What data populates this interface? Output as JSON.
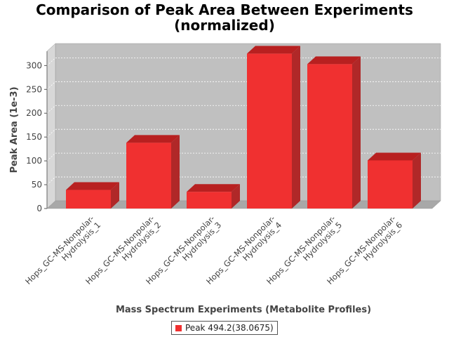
{
  "chart_data": {
    "type": "bar",
    "title_line1": "Comparison of Peak Area Between Experiments",
    "title_line2": "(normalized)",
    "xlabel": "Mass Spectrum Experiments (Metabolite Profiles)",
    "ylabel": "Peak Area (1e-3)",
    "categories": [
      [
        "Hops_GC-MS-Nonpolar-",
        "Hydrolysis_1"
      ],
      [
        "Hops_GC-MS-Nonpolar-",
        "Hydrolysis_2"
      ],
      [
        "Hops_GC-MS-Nonpolar-",
        "Hydrolysis_3"
      ],
      [
        "Hops_GC-MS-Nonpolar-",
        "Hydrolysis_4"
      ],
      [
        "Hops_GC-MS-Nonpolar-",
        "Hydrolysis_5"
      ],
      [
        "Hops_GC-MS-Nonpolar-",
        "Hydrolysis_6"
      ]
    ],
    "series": [
      {
        "name": "Peak 494.2(38.0675)",
        "values": [
          39,
          138,
          35,
          325,
          303,
          101
        ]
      }
    ],
    "ylim": [
      0,
      330
    ],
    "yticks": [
      0,
      50,
      100,
      150,
      200,
      250,
      300
    ],
    "grid": true,
    "legend_position": "bottom",
    "colors": {
      "bar_front": "#f03030",
      "bar_top": "#b82020",
      "bar_side": "#b02828",
      "plot_back": "#c0c0c0",
      "plot_floor": "#a8a8a8",
      "plot_wall": "#d8d8d8"
    }
  }
}
